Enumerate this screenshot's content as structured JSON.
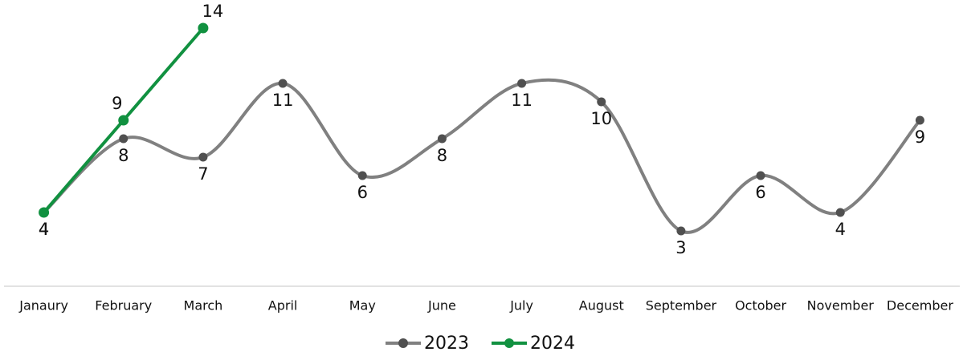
{
  "chart_data": {
    "type": "line",
    "categories": [
      "Janaury",
      "February",
      "March",
      "April",
      "May",
      "June",
      "July",
      "August",
      "September",
      "October",
      "November",
      "December"
    ],
    "series": [
      {
        "name": "2023",
        "color": "#808080",
        "marker_color": "#505050",
        "smooth": true,
        "values": [
          4,
          8,
          7,
          11,
          6,
          8,
          11,
          10,
          3,
          6,
          4,
          9
        ]
      },
      {
        "name": "2024",
        "color": "#119140",
        "marker_color": "#119140",
        "smooth": false,
        "values": [
          4,
          9,
          14,
          null,
          null,
          null,
          null,
          null,
          null,
          null,
          null,
          null
        ]
      }
    ],
    "ylim": [
      0,
      15
    ],
    "legend": "bottom"
  }
}
